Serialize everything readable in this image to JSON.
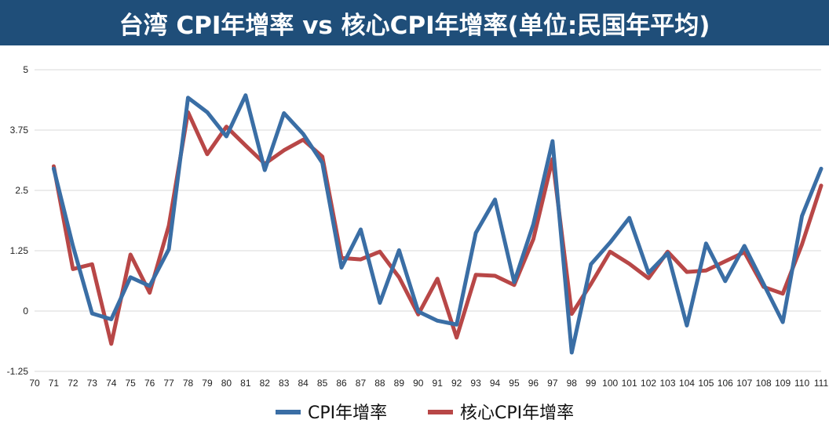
{
  "title": "台湾 CPI年增率 vs 核心CPI年增率(单位:民国年平均)",
  "colors": {
    "title_bg": "#1f4e79",
    "title_fg": "#ffffff",
    "cpi": "#3a6ea5",
    "core": "#b84747",
    "grid": "#d9d9d9"
  },
  "chart_data": {
    "type": "line",
    "title": "台湾 CPI年增率 vs 核心CPI年增率(单位:民国年平均)",
    "xlabel": "",
    "ylabel": "",
    "x": [
      "70",
      "71",
      "72",
      "73",
      "74",
      "75",
      "76",
      "77",
      "78",
      "79",
      "80",
      "81",
      "82",
      "83",
      "84",
      "85",
      "86",
      "87",
      "88",
      "89",
      "90",
      "91",
      "92",
      "93",
      "94",
      "95",
      "96",
      "97",
      "98",
      "99",
      "100",
      "101",
      "102",
      "103",
      "104",
      "105",
      "106",
      "107",
      "108",
      "109",
      "110",
      "111"
    ],
    "y_ticks": [
      "5",
      "3.75",
      "2.5",
      "1.25",
      "0",
      "-1.25"
    ],
    "ylim": [
      -1.25,
      5
    ],
    "grid": true,
    "legend_position": "bottom",
    "series": [
      {
        "name": "CPI年增率",
        "color": "#3a6ea5",
        "values": [
          null,
          2.95,
          1.35,
          -0.05,
          -0.17,
          0.7,
          0.52,
          1.28,
          4.42,
          4.12,
          3.62,
          4.47,
          2.92,
          4.1,
          3.67,
          3.07,
          0.9,
          1.69,
          0.17,
          1.26,
          -0.01,
          -0.2,
          -0.28,
          1.62,
          2.31,
          0.6,
          1.8,
          3.52,
          -0.86,
          0.97,
          1.42,
          1.93,
          0.79,
          1.2,
          -0.3,
          1.4,
          0.62,
          1.35,
          0.56,
          -0.23,
          1.97,
          2.95
        ]
      },
      {
        "name": "核心CPI年增率",
        "color": "#b84747",
        "values": [
          null,
          3.0,
          0.87,
          0.97,
          -0.68,
          1.17,
          0.38,
          1.77,
          4.12,
          3.25,
          3.82,
          3.43,
          3.05,
          3.33,
          3.55,
          3.2,
          1.1,
          1.07,
          1.23,
          0.7,
          -0.07,
          0.67,
          -0.55,
          0.75,
          0.73,
          0.54,
          1.49,
          3.15,
          -0.06,
          0.56,
          1.23,
          0.98,
          0.68,
          1.23,
          0.81,
          0.84,
          1.03,
          1.22,
          0.5,
          0.36,
          1.38,
          2.6
        ]
      }
    ]
  }
}
